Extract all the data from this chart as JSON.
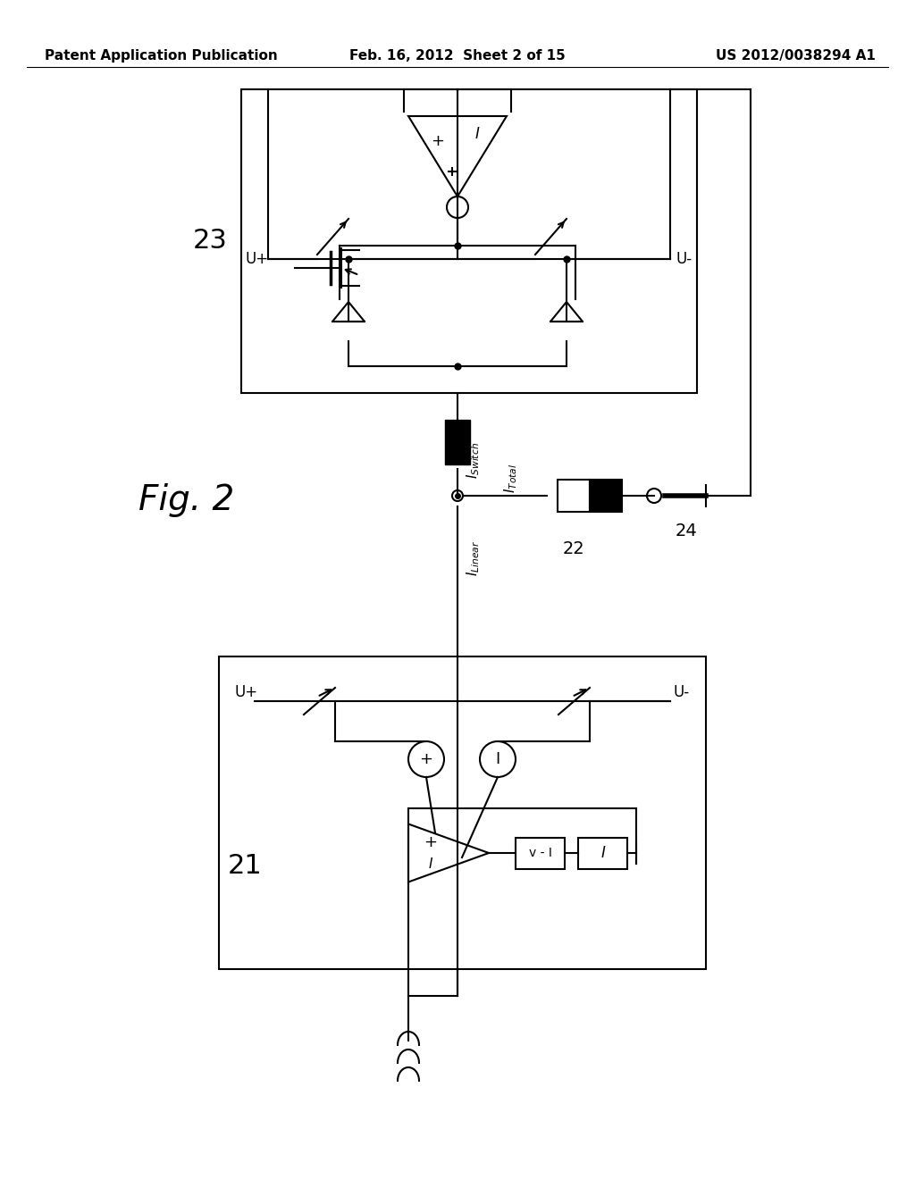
{
  "bg_color": "#ffffff",
  "header_left": "Patent Application Publication",
  "header_mid": "Feb. 16, 2012  Sheet 2 of 15",
  "header_right": "US 2012/0038294 A1",
  "fig_label": "Fig. 2",
  "block23_label": "23",
  "block22_label": "22",
  "block24_label": "24",
  "block21_label": "21",
  "label_Uplus_top": "U+",
  "label_Uminus_top": "U-",
  "label_Uplus_bot": "U+",
  "label_Uminus_bot": "U-",
  "label_ISwitch": "I_Switch",
  "label_ITotal": "I_Total",
  "label_ILinear": "I_Linear"
}
